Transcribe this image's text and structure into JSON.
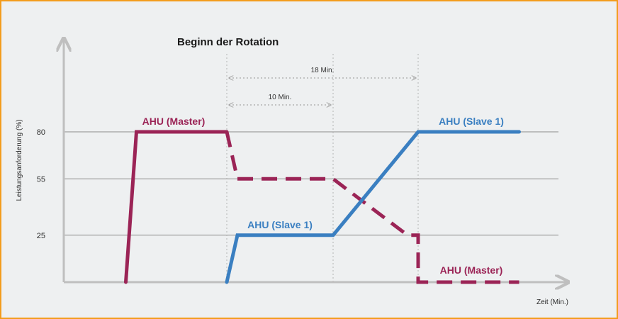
{
  "chart_data": {
    "type": "line",
    "title": "Beginn der Rotation",
    "xlabel": "Zeit (Min.)",
    "ylabel": "Leistungsanforderung (%)",
    "ylim": [
      0,
      100
    ],
    "y_ticks": [
      80,
      55,
      25
    ],
    "grid": true,
    "series": [
      {
        "name": "AHU (Master)",
        "style": "solid",
        "color": "#9b2456",
        "points": [
          [
            -9.5,
            0
          ],
          [
            -8.5,
            80
          ],
          [
            0,
            80
          ]
        ]
      },
      {
        "name": "AHU (Master)",
        "style": "dashed",
        "color": "#9b2456",
        "points": [
          [
            0,
            80
          ],
          [
            1,
            55
          ],
          [
            10,
            55
          ],
          [
            17,
            25
          ],
          [
            18,
            25
          ],
          [
            18,
            0
          ],
          [
            27.5,
            0
          ]
        ]
      },
      {
        "name": "AHU (Slave 1)",
        "style": "solid",
        "color": "#3a7fc1",
        "points": [
          [
            0,
            0
          ],
          [
            1,
            25
          ],
          [
            10,
            25
          ],
          [
            18,
            80
          ],
          [
            27.5,
            80
          ]
        ]
      }
    ],
    "series_labels": [
      {
        "text": "AHU (Master)",
        "at": [
          -5,
          80
        ],
        "series": 0
      },
      {
        "text": "AHU (Slave 1)",
        "at": [
          5,
          25
        ],
        "series": 2
      },
      {
        "text": "AHU (Slave 1)",
        "at": [
          23,
          80
        ],
        "series": 2
      },
      {
        "text": "AHU (Master)",
        "at": [
          23,
          0
        ],
        "series": 1
      }
    ],
    "annotations": [
      {
        "text": "10 Min.",
        "from": 0,
        "to": 10
      },
      {
        "text": "18 Min.",
        "from": 0,
        "to": 18
      }
    ]
  }
}
